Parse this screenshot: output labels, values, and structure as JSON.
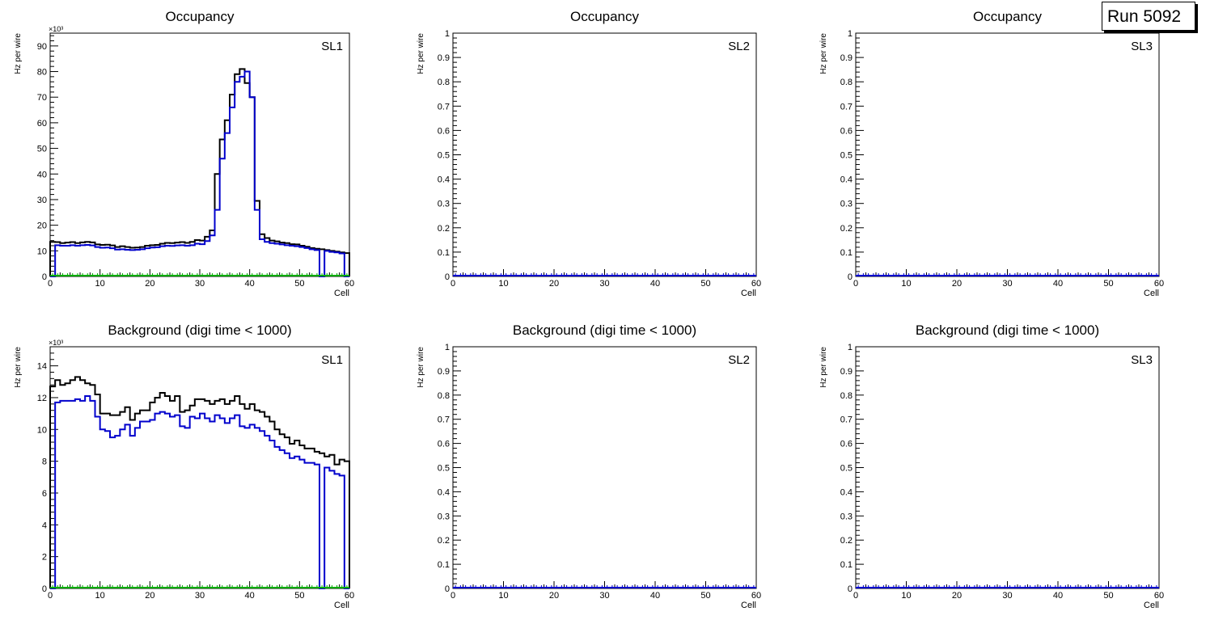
{
  "run_label": "Run 5092",
  "colors": {
    "total": "#000000",
    "blue": "#0000cc",
    "green": "#00aa00",
    "flat": "#0000cc"
  },
  "chart_data": [
    {
      "id": "occ-sl1",
      "type": "histogram",
      "title": "Occupancy",
      "label": "SL1",
      "xlabel": "Cell",
      "ylabel": "Hz per wire",
      "multiplier": "×10³",
      "xlim": [
        0,
        60
      ],
      "ylim": [
        0,
        95
      ],
      "xticks": [
        0,
        10,
        20,
        30,
        40,
        50,
        60
      ],
      "yticks": [
        0,
        10,
        20,
        30,
        40,
        50,
        60,
        70,
        80,
        90
      ],
      "series": [
        {
          "name": "total",
          "color": "#000000",
          "values": [
            13.5,
            13.4,
            13,
            13.2,
            13.4,
            13,
            13.3,
            13.5,
            13.3,
            12.5,
            12.3,
            12.4,
            12.1,
            11.5,
            11.8,
            11.5,
            11.2,
            11.3,
            11.5,
            12,
            12.2,
            12.3,
            12.8,
            13.1,
            13,
            13.2,
            13.4,
            13.1,
            13.5,
            14.2,
            14,
            15.5,
            18,
            40,
            53.5,
            61,
            71,
            79,
            81,
            75.5,
            70,
            29.5,
            16.5,
            15,
            14,
            13.7,
            13.2,
            13,
            12.6,
            12.5,
            12,
            11.6,
            11.1,
            10.8,
            10.6,
            10.3,
            10,
            9.7,
            9.4,
            9.1
          ]
        },
        {
          "name": "blue",
          "color": "#0000cc",
          "values": [
            0,
            12.2,
            12,
            12,
            12.2,
            12,
            12.2,
            12.3,
            12.1,
            11.5,
            11.2,
            11.3,
            11,
            10.5,
            10.6,
            10.4,
            10.3,
            10.4,
            10.6,
            11,
            11.3,
            11.4,
            11.8,
            12,
            11.9,
            12.1,
            12.2,
            12,
            12.2,
            12.8,
            12.6,
            13.8,
            16,
            26,
            46,
            56,
            66,
            76,
            78,
            80,
            70,
            26,
            14.5,
            13.5,
            13,
            12.8,
            12.5,
            12.2,
            12,
            11.8,
            11.5,
            11.1,
            10.6,
            10.3,
            0,
            10,
            9.6,
            9.4,
            9,
            0
          ]
        },
        {
          "name": "green",
          "color": "#00aa00",
          "values": "zeros"
        }
      ]
    },
    {
      "id": "occ-sl2",
      "type": "histogram",
      "title": "Occupancy",
      "label": "SL2",
      "xlabel": "Cell",
      "ylabel": "Hz per wire",
      "multiplier": "",
      "xlim": [
        0,
        60
      ],
      "ylim": [
        0,
        1
      ],
      "xticks": [
        0,
        10,
        20,
        30,
        40,
        50,
        60
      ],
      "yticks": [
        0,
        0.1,
        0.2,
        0.3,
        0.4,
        0.5,
        0.6,
        0.7,
        0.8,
        0.9,
        1
      ],
      "series": [
        {
          "name": "empty",
          "color": "#0000cc",
          "values": "zeros"
        }
      ]
    },
    {
      "id": "occ-sl3",
      "type": "histogram",
      "title": "Occupancy",
      "label": "SL3",
      "xlabel": "Cell",
      "ylabel": "Hz per wire",
      "multiplier": "",
      "xlim": [
        0,
        60
      ],
      "ylim": [
        0,
        1
      ],
      "xticks": [
        0,
        10,
        20,
        30,
        40,
        50,
        60
      ],
      "yticks": [
        0,
        0.1,
        0.2,
        0.3,
        0.4,
        0.5,
        0.6,
        0.7,
        0.8,
        0.9,
        1
      ],
      "series": [
        {
          "name": "empty",
          "color": "#0000cc",
          "values": "zeros"
        }
      ]
    },
    {
      "id": "bkg-sl1",
      "type": "histogram",
      "title": "Background (digi time < 1000)",
      "label": "SL1",
      "xlabel": "Cell",
      "ylabel": "Hz per wire",
      "multiplier": "×10³",
      "xlim": [
        0,
        60
      ],
      "ylim": [
        0,
        15.2
      ],
      "xticks": [
        0,
        10,
        20,
        30,
        40,
        50,
        60
      ],
      "yticks": [
        0,
        2,
        4,
        6,
        8,
        10,
        12,
        14
      ],
      "series": [
        {
          "name": "total",
          "color": "#000000",
          "values": [
            12.7,
            13.1,
            12.8,
            12.9,
            13.1,
            13.3,
            13.1,
            12.9,
            12.8,
            12.2,
            11,
            11,
            10.9,
            10.9,
            11.1,
            11.4,
            10.6,
            11,
            11.2,
            11.2,
            11.7,
            12,
            12.3,
            12.1,
            11.8,
            12.1,
            11.1,
            11.2,
            11.5,
            11.9,
            11.9,
            11.8,
            11.6,
            11.8,
            11.9,
            11.6,
            11.8,
            12.1,
            11.6,
            11.3,
            11.6,
            11.2,
            11.1,
            10.8,
            10.5,
            10,
            9.7,
            9.5,
            9.1,
            9.3,
            9,
            8.8,
            8.8,
            8.6,
            8.5,
            8.3,
            8.4,
            7.8,
            8.1,
            8
          ]
        },
        {
          "name": "blue",
          "color": "#0000cc",
          "values": [
            0,
            11.7,
            11.8,
            11.8,
            11.8,
            11.9,
            11.8,
            12.1,
            11.8,
            10.8,
            10,
            9.9,
            9.5,
            9.6,
            10,
            10.3,
            9.6,
            10.1,
            10.5,
            10.5,
            10.6,
            11,
            11.1,
            11,
            10.8,
            10.9,
            10.2,
            10.1,
            10.8,
            10.7,
            11,
            10.7,
            10.5,
            10.9,
            10.7,
            10.4,
            10.7,
            10.9,
            10.2,
            10.1,
            10.3,
            10.1,
            9.9,
            9.6,
            9.3,
            8.9,
            8.7,
            8.5,
            8.2,
            8.3,
            8.1,
            7.9,
            7.9,
            7.8,
            0,
            7.6,
            7.4,
            7.2,
            7.1,
            0
          ]
        },
        {
          "name": "green",
          "color": "#00aa00",
          "values": "zeros"
        }
      ]
    },
    {
      "id": "bkg-sl2",
      "type": "histogram",
      "title": "Background (digi time < 1000)",
      "label": "SL2",
      "xlabel": "Cell",
      "ylabel": "Hz per wire",
      "multiplier": "",
      "xlim": [
        0,
        60
      ],
      "ylim": [
        0,
        1
      ],
      "xticks": [
        0,
        10,
        20,
        30,
        40,
        50,
        60
      ],
      "yticks": [
        0,
        0.1,
        0.2,
        0.3,
        0.4,
        0.5,
        0.6,
        0.7,
        0.8,
        0.9,
        1
      ],
      "series": [
        {
          "name": "empty",
          "color": "#0000cc",
          "values": "zeros"
        }
      ]
    },
    {
      "id": "bkg-sl3",
      "type": "histogram",
      "title": "Background (digi time < 1000)",
      "label": "SL3",
      "xlabel": "Cell",
      "ylabel": "Hz per wire",
      "multiplier": "",
      "xlim": [
        0,
        60
      ],
      "ylim": [
        0,
        1
      ],
      "xticks": [
        0,
        10,
        20,
        30,
        40,
        50,
        60
      ],
      "yticks": [
        0,
        0.1,
        0.2,
        0.3,
        0.4,
        0.5,
        0.6,
        0.7,
        0.8,
        0.9,
        1
      ],
      "series": [
        {
          "name": "empty",
          "color": "#0000cc",
          "values": "zeros"
        }
      ]
    }
  ]
}
